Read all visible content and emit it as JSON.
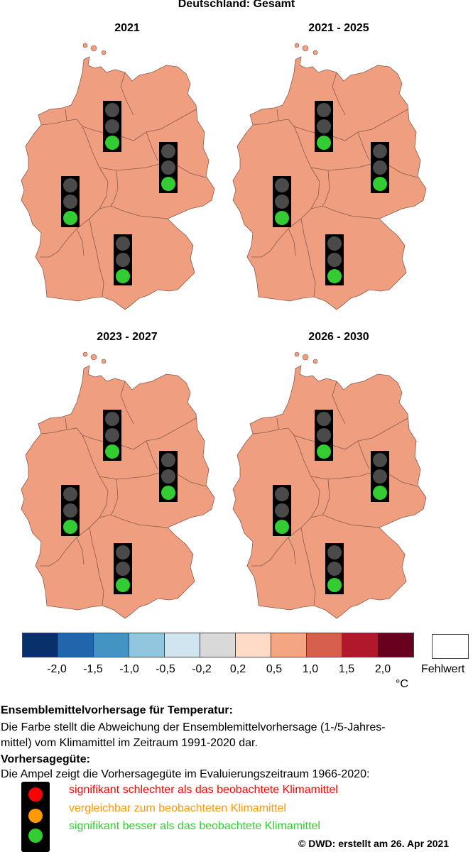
{
  "title": "Deutschland: Gesamt",
  "colors": {
    "map_fill": "#ef9e80",
    "border": "#8c5a4a",
    "light_off": "#4a4a4a",
    "light_green": "#33cc33",
    "light_red": "#ff0000",
    "light_orange": "#ff9900"
  },
  "panels": [
    {
      "label": "2021",
      "signals": [
        "green",
        "green",
        "green",
        "green"
      ]
    },
    {
      "label": "2021 - 2025",
      "signals": [
        "green",
        "green",
        "green",
        "green"
      ]
    },
    {
      "label": "2023 - 2027",
      "signals": [
        "green",
        "green",
        "green",
        "green"
      ]
    },
    {
      "label": "2026 - 2030",
      "signals": [
        "green",
        "green",
        "green",
        "green"
      ]
    }
  ],
  "legend": {
    "colors": [
      "#08306b",
      "#2166ac",
      "#4393c3",
      "#92c5de",
      "#d1e5f0",
      "#d9d9d9",
      "#fddbc7",
      "#f4a582",
      "#d6604d",
      "#b2182b",
      "#67001f"
    ],
    "ticks": [
      "-2,0",
      "-1,5",
      "-1,0",
      "-0,5",
      "-0,2",
      "0,2",
      "0,5",
      "1,0",
      "1,5",
      "2,0"
    ],
    "missing_label": "Fehlwert",
    "unit": "°C"
  },
  "text": {
    "heading1": "Ensemblemittelvorhersage für Temperatur:",
    "body1_line1": "Die Farbe stellt die Abweichung der Ensemblemittelvorhersage (1-/5-Jahres-",
    "body1_line2": "mittel) vom Klimamittel im Zeitraum 1991-2020 dar.",
    "heading2": "Vorhersagegüte:",
    "body2": "Die Ampel zeigt die Vorhersagegüte im Evaluierungszeitraum 1966-2020:",
    "key_red": "signifikant schlechter als das beobachtete Klimamittel",
    "key_orange": "vergleichbar zum beobachteten Klimamittel",
    "key_green": "signifikant besser als das beobachtete Klimamittel",
    "footer": "©  DWD: erstellt am 26. Apr 2021"
  }
}
